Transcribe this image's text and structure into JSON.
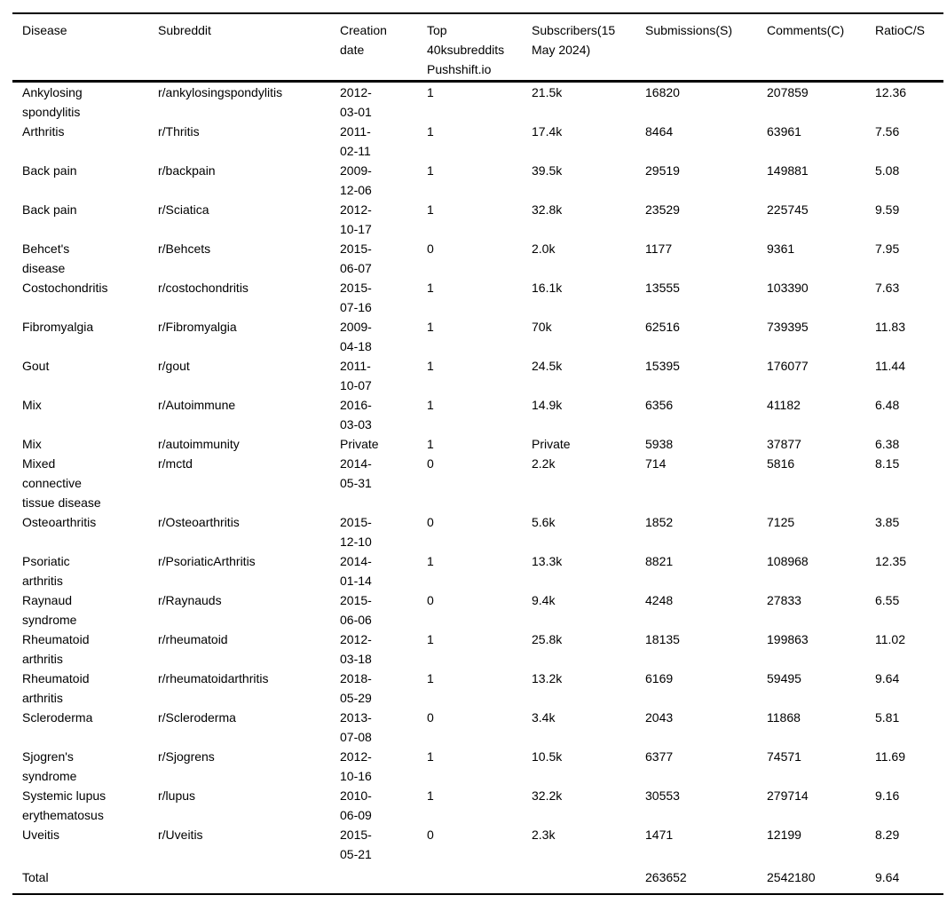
{
  "table": {
    "columns": [
      "Disease",
      "Subreddit",
      "Creation date",
      "Top 40ksubreddits Pushshift.io",
      "Subscribers(15 May 2024)",
      "Submissions(S)",
      "Comments(C)",
      "RatioC/S"
    ],
    "rows": [
      [
        "Ankylosing spondylitis",
        "r/ankylosingspondylitis",
        "2012-03-01",
        "1",
        "21.5k",
        "16820",
        "207859",
        "12.36"
      ],
      [
        "Arthritis",
        "r/Thritis",
        "2011-02-11",
        "1",
        "17.4k",
        "8464",
        "63961",
        "7.56"
      ],
      [
        "Back pain",
        "r/backpain",
        "2009-12-06",
        "1",
        "39.5k",
        "29519",
        "149881",
        "5.08"
      ],
      [
        "Back pain",
        "r/Sciatica",
        "2012-10-17",
        "1",
        "32.8k",
        "23529",
        "225745",
        "9.59"
      ],
      [
        "Behcet's disease",
        "r/Behcets",
        "2015-06-07",
        "0",
        "2.0k",
        "1177",
        "9361",
        "7.95"
      ],
      [
        "Costochondritis",
        "r/costochondritis",
        "2015-07-16",
        "1",
        "16.1k",
        "13555",
        "103390",
        "7.63"
      ],
      [
        "Fibromyalgia",
        "r/Fibromyalgia",
        "2009-04-18",
        "1",
        "70k",
        "62516",
        "739395",
        "11.83"
      ],
      [
        "Gout",
        "r/gout",
        "2011-10-07",
        "1",
        "24.5k",
        "15395",
        "176077",
        "11.44"
      ],
      [
        "Mix",
        "r/Autoimmune",
        "2016-03-03",
        "1",
        "14.9k",
        "6356",
        "41182",
        "6.48"
      ],
      [
        "Mix",
        "r/autoimmunity",
        "Private",
        "1",
        "Private",
        "5938",
        "37877",
        "6.38"
      ],
      [
        "Mixed connective tissue disease",
        "r/mctd",
        "2014-05-31",
        "0",
        "2.2k",
        "714",
        "5816",
        "8.15"
      ],
      [
        "Osteoarthritis",
        "r/Osteoarthritis",
        "2015-12-10",
        "0",
        "5.6k",
        "1852",
        "7125",
        "3.85"
      ],
      [
        "Psoriatic arthritis",
        "r/PsoriaticArthritis",
        "2014-01-14",
        "1",
        "13.3k",
        "8821",
        "108968",
        "12.35"
      ],
      [
        "Raynaud syndrome",
        "r/Raynauds",
        "2015-06-06",
        "0",
        "9.4k",
        "4248",
        "27833",
        "6.55"
      ],
      [
        "Rheumatoid arthritis",
        "r/rheumatoid",
        "2012-03-18",
        "1",
        "25.8k",
        "18135",
        "199863",
        "11.02"
      ],
      [
        "Rheumatoid arthritis",
        "r/rheumatoidarthritis",
        "2018-05-29",
        "1",
        "13.2k",
        "6169",
        "59495",
        "9.64"
      ],
      [
        "Scleroderma",
        "r/Scleroderma",
        "2013-07-08",
        "0",
        "3.4k",
        "2043",
        "11868",
        "5.81"
      ],
      [
        "Sjogren's syndrome",
        "r/Sjogrens",
        "2012-10-16",
        "1",
        "10.5k",
        "6377",
        "74571",
        "11.69"
      ],
      [
        "Systemic lupus erythematosus",
        "r/lupus",
        "2010-06-09",
        "1",
        "32.2k",
        "30553",
        "279714",
        "9.16"
      ],
      [
        "Uveitis",
        "r/Uveitis",
        "2015-05-21",
        "0",
        "2.3k",
        "1471",
        "12199",
        "8.29"
      ]
    ],
    "total_row": {
      "label": "Total",
      "submissions": "263652",
      "comments": "2542180",
      "ratio_c_s": "9.64"
    }
  }
}
